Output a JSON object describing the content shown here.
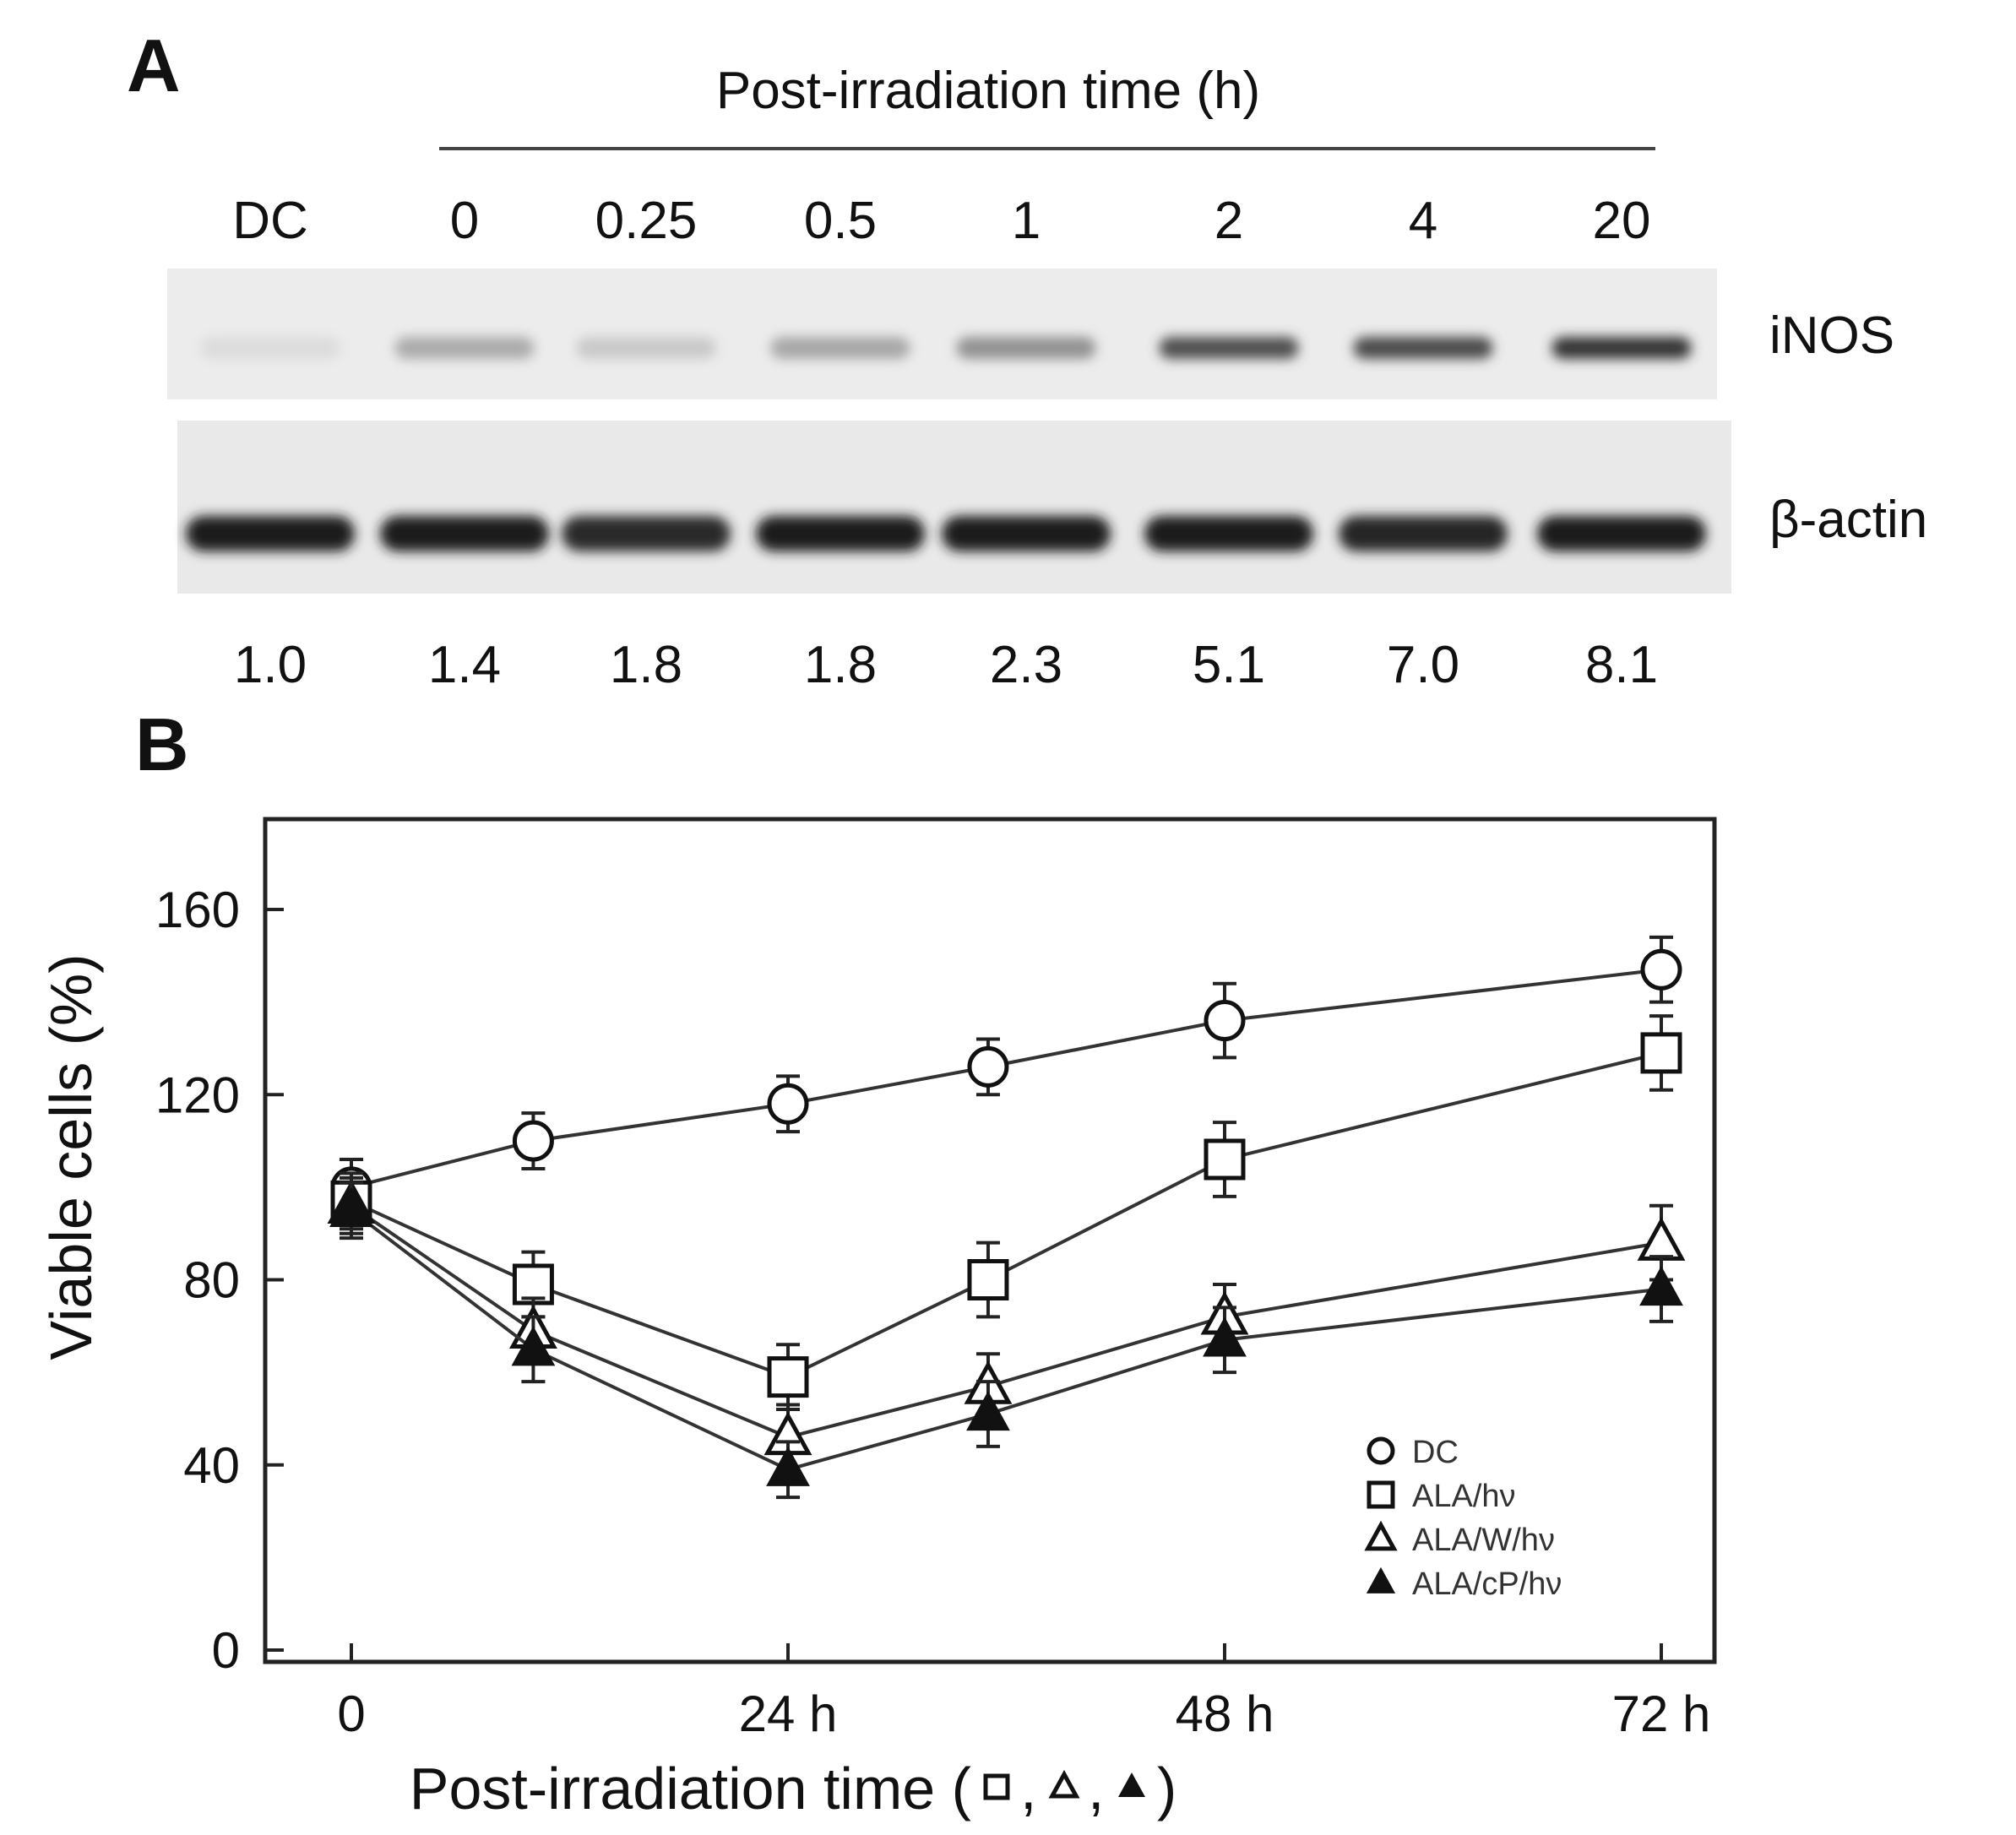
{
  "panel_a": {
    "label": "A",
    "header": "Post-irradiation time (h)",
    "lanes": [
      "DC",
      "0",
      "0.25",
      "0.5",
      "1",
      "2",
      "4",
      "20"
    ],
    "bands": [
      {
        "name": "iNOS",
        "intensity": [
          0.05,
          0.28,
          0.14,
          0.3,
          0.4,
          0.72,
          0.74,
          0.84
        ]
      },
      {
        "name": "β-actin",
        "intensity": [
          0.97,
          0.97,
          0.9,
          0.97,
          0.97,
          0.97,
          0.92,
          0.97
        ]
      }
    ],
    "ratios": [
      "1.0",
      "1.4",
      "1.8",
      "1.8",
      "2.3",
      "5.1",
      "7.0",
      "8.1"
    ]
  },
  "chart_data": {
    "type": "line",
    "panel_label": "B",
    "xlabel": "Post-irradiation time (",
    "xlabel_symbols": [
      "□",
      "△",
      "▲"
    ],
    "ylabel": "Viable cells (%)",
    "x_ticks": [
      0,
      24,
      48,
      72
    ],
    "x_tick_labels": [
      "0",
      "24 h",
      "48 h",
      "72 h"
    ],
    "xlim": [
      -5,
      75
    ],
    "y_ticks": [
      0,
      40,
      80,
      120,
      160
    ],
    "y_tick_labels": [
      "0",
      "40",
      "80",
      "120",
      "160"
    ],
    "ylim": [
      0,
      178
    ],
    "x": [
      0,
      10,
      24,
      35,
      48,
      72
    ],
    "grid": false,
    "legend_position": "bottom-right",
    "series": [
      {
        "name": "DC",
        "marker": "circle-open",
        "values": [
          100,
          110,
          118,
          126,
          136,
          147
        ],
        "errors": [
          6,
          6,
          6,
          6,
          8,
          7
        ]
      },
      {
        "name": "ALA/hν",
        "marker": "square-open",
        "values": [
          97,
          79,
          59,
          80,
          106,
          129
        ],
        "errors": [
          6,
          7,
          7,
          8,
          8,
          8
        ]
      },
      {
        "name": "ALA/W/hν",
        "marker": "triangle-open",
        "values": [
          96,
          69,
          46,
          57,
          72,
          88
        ],
        "errors": [
          6,
          7,
          7,
          7,
          7,
          8
        ]
      },
      {
        "name": "ALA/cP/hν",
        "marker": "triangle-filled",
        "values": [
          95,
          65,
          39,
          51,
          67,
          78
        ],
        "errors": [
          6,
          7,
          6,
          7,
          7,
          7
        ]
      }
    ]
  }
}
